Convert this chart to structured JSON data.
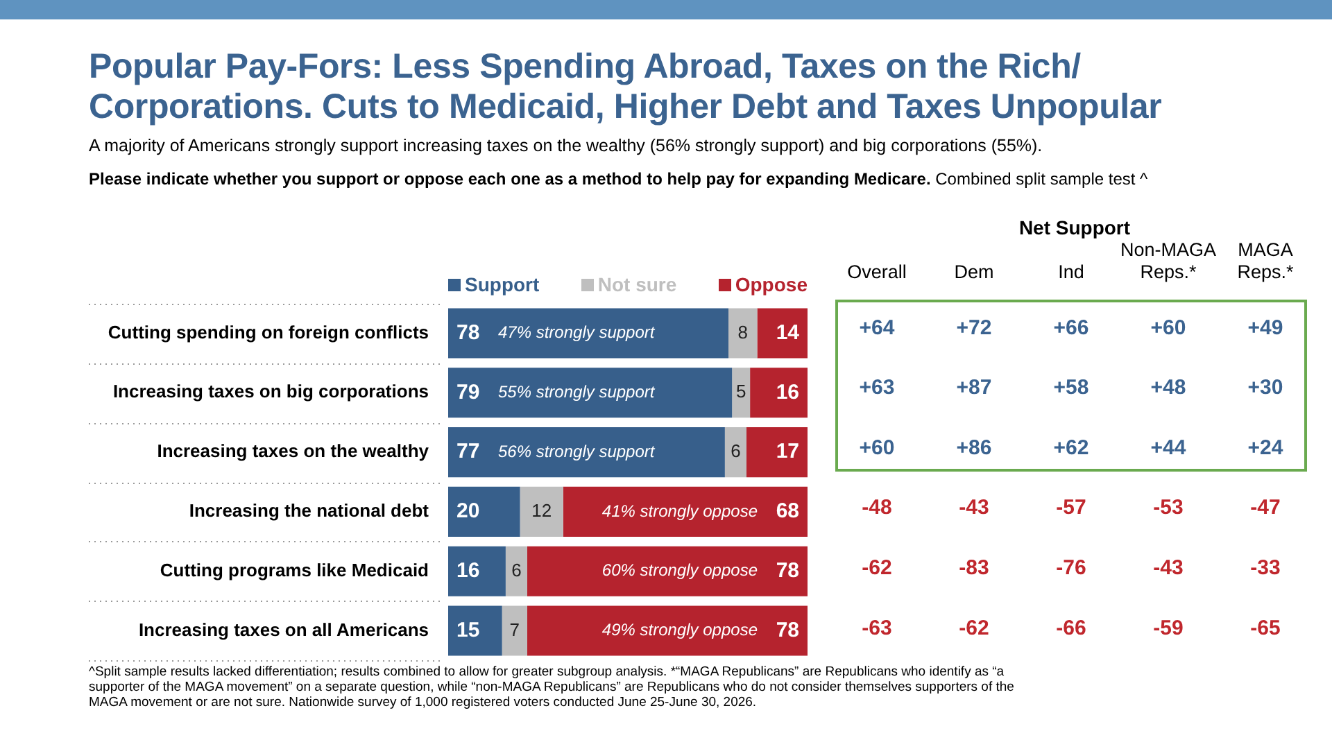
{
  "chart_data": [
    {
      "type": "bar",
      "orientation": "horizontal",
      "stacked": true,
      "title": "Popular Pay-Fors: Less Spending Abroad, Taxes on the Rich/ Corporations. Cuts to Medicaid, Higher Debt and Taxes Unpopular",
      "subtitle": "A majority of Americans strongly support increasing taxes on the wealthy (56% strongly support) and big corporations (55%).",
      "categories": [
        "Cutting spending on foreign conflicts",
        "Increasing taxes on big corporations",
        "Increasing taxes on the wealthy",
        "Increasing the national debt",
        "Cutting programs like Medicaid",
        "Increasing taxes on all Americans"
      ],
      "series": [
        {
          "name": "Support",
          "color": "#375f8b",
          "values": [
            78,
            79,
            77,
            20,
            16,
            15
          ]
        },
        {
          "name": "Not sure",
          "color": "#bfbfbf",
          "values": [
            8,
            5,
            6,
            12,
            6,
            7
          ]
        },
        {
          "name": "Oppose",
          "color": "#b5232e",
          "values": [
            14,
            16,
            17,
            68,
            78,
            78
          ]
        }
      ],
      "xlim": [
        0,
        100
      ],
      "data_labels": true,
      "legend": "top",
      "grid": "y",
      "annotations": [
        "Please indicate whether you support or oppose each one as a method to help pay for expanding Medicare.",
        "Combined split sample test ^",
        "^Split sample results lacked differentiation; results combined to allow for greater subgroup analysis. *“MAGA Republicans” are Republicans who identify as “a supporter of the MAGA movement” on a separate question, while “non-MAGA Republicans” are Republicans who do not consider themselves supporters of the MAGA movement or are not sure. Nationwide survey of 1,000 registered voters conducted June 25-June 30, 2026.",
        {
          "text": "47% strongly support",
          "y": "Cutting spending on foreign conflicts"
        },
        {
          "text": "55% strongly support",
          "y": "Increasing taxes on big corporations"
        },
        {
          "text": "56% strongly support",
          "y": "Increasing taxes on the wealthy"
        },
        {
          "text": "41% strongly oppose",
          "y": "Increasing the national debt"
        },
        {
          "text": "60% strongly oppose",
          "y": "Cutting programs like Medicaid"
        },
        {
          "text": "49% strongly oppose",
          "y": "Increasing taxes on all Americans"
        }
      ]
    },
    {
      "type": "heatmap",
      "title": "Net Support",
      "categories": [
        "Overall",
        "Dem",
        "Ind",
        "Non-MAGA Reps.*",
        "MAGA Reps.*"
      ],
      "y_categories": [
        null,
        null,
        null,
        null,
        null,
        null
      ],
      "cells": [
        [
          64,
          72,
          66,
          60,
          49
        ],
        [
          63,
          87,
          58,
          48,
          30
        ],
        [
          60,
          86,
          62,
          44,
          24
        ],
        [
          -48,
          -43,
          -57,
          -53,
          -47
        ],
        [
          -62,
          -83,
          -76,
          -43,
          -33
        ],
        [
          -63,
          -62,
          -66,
          -59,
          -65
        ]
      ],
      "cell_labels": [
        [
          "+64",
          "+72",
          "+66",
          "+60",
          "+49"
        ],
        [
          "+63",
          "+87",
          "+58",
          "+48",
          "+30"
        ],
        [
          "+60",
          "+86",
          "+62",
          "+44",
          "+24"
        ],
        [
          "-48",
          "-43",
          "-57",
          "-53",
          "-47"
        ],
        [
          "-62",
          "-83",
          "-76",
          "-43",
          "-33"
        ],
        [
          "-63",
          "-62",
          "-66",
          "-59",
          "-65"
        ]
      ]
    }
  ]
}
